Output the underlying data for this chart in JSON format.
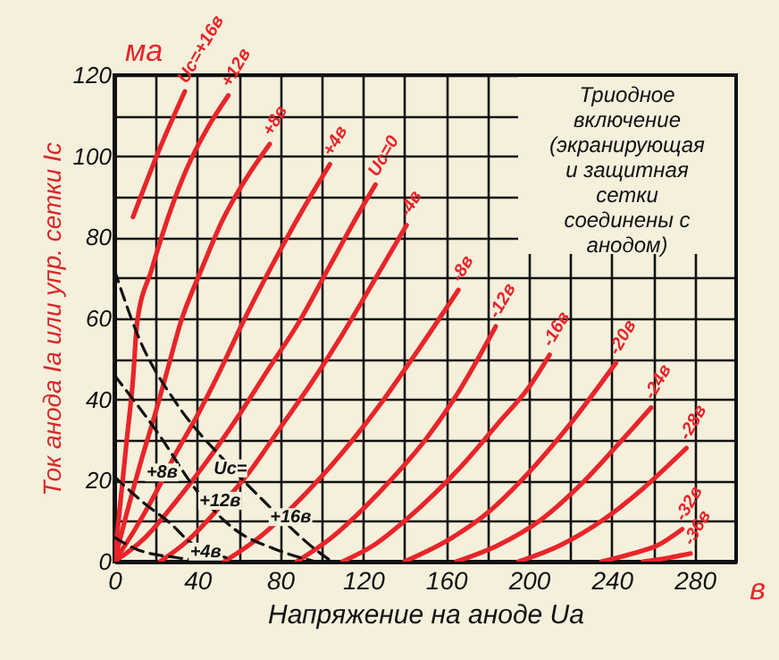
{
  "chart_data": {
    "type": "line",
    "xlabel": "Напряжение на аноде Uа",
    "ylabel": "Ток анода Iа или упр. сетки Iс",
    "xlim": [
      0,
      300
    ],
    "ylim": [
      0,
      120
    ],
    "xticks": [
      0,
      {
        "value": 20,
        "label": null
      },
      40,
      {
        "value": 60,
        "label": null
      },
      80,
      {
        "value": 100,
        "label": null
      },
      120,
      {
        "value": 140,
        "label": null
      },
      160,
      {
        "value": 180,
        "label": null
      },
      200,
      {
        "value": 220,
        "label": null
      },
      240,
      {
        "value": 260,
        "label": null
      },
      280
    ],
    "yticks": [
      0,
      {
        "value": 10,
        "label": null
      },
      20,
      {
        "value": 30,
        "label": null
      },
      40,
      {
        "value": 50,
        "label": null
      },
      60,
      {
        "value": 70,
        "label": null
      },
      80,
      {
        "value": 90,
        "label": null
      },
      100,
      {
        "value": 110,
        "label": null
      },
      120
    ],
    "grid": true,
    "marker": "none",
    "series": [
      {
        "name": "Uc=+16в",
        "color": "#e8252a",
        "x": [
          9,
          22,
          34
        ],
        "values": [
          85,
          102,
          116
        ]
      },
      {
        "name": "+12в",
        "color": "#e8252a",
        "x": [
          0,
          3,
          6,
          9,
          11,
          18,
          26,
          35,
          45,
          55
        ],
        "values": [
          0,
          15,
          30,
          45,
          59,
          72,
          85,
          97,
          107,
          115
        ]
      },
      {
        "name": "+8в",
        "color": "#e8252a",
        "x": [
          0,
          6,
          13,
          20,
          26,
          32,
          42,
          52,
          63,
          75
        ],
        "values": [
          0,
          12,
          25,
          37,
          48,
          59,
          72,
          84,
          94,
          103
        ]
      },
      {
        "name": "+4в",
        "color": "#e8252a",
        "x": [
          0,
          10,
          20,
          30,
          40,
          50,
          62,
          75,
          90,
          104
        ],
        "values": [
          0,
          8,
          17,
          27,
          36,
          46,
          59,
          72,
          86,
          98
        ]
      },
      {
        "name": "Uc=0",
        "color": "#e8252a",
        "x": [
          0,
          15,
          30,
          45,
          60,
          75,
          89,
          104,
          118,
          126
        ],
        "values": [
          0,
          6,
          15,
          25,
          36,
          48,
          59,
          73,
          86,
          93
        ]
      },
      {
        "name": "-4в",
        "color": "#e8252a",
        "x": [
          22,
          35,
          50,
          65,
          80,
          95,
          110,
          125,
          141
        ],
        "values": [
          0,
          5,
          13,
          22,
          33,
          44,
          56,
          69,
          83
        ]
      },
      {
        "name": "-8в",
        "color": "#e8252a",
        "x": [
          53,
          70,
          85,
          100,
          115,
          130,
          145,
          166
        ],
        "values": [
          0,
          6,
          13,
          21,
          30,
          40,
          51,
          67
        ]
      },
      {
        "name": "-12в",
        "color": "#e8252a",
        "x": [
          88,
          105,
          120,
          135,
          150,
          165,
          184
        ],
        "values": [
          0,
          6,
          13,
          21,
          30,
          41,
          58
        ]
      },
      {
        "name": "-16в",
        "color": "#e8252a",
        "x": [
          110,
          125,
          140,
          155,
          170,
          185,
          200,
          210
        ],
        "values": [
          0,
          4,
          10,
          17,
          25,
          34,
          43,
          51
        ]
      },
      {
        "name": "-20в",
        "color": "#e8252a",
        "x": [
          140,
          160,
          180,
          200,
          220,
          242
        ],
        "values": [
          0,
          5,
          12,
          22,
          34,
          49
        ]
      },
      {
        "name": "-24в",
        "color": "#e8252a",
        "x": [
          165,
          185,
          205,
          225,
          245,
          259
        ],
        "values": [
          0,
          4,
          10,
          19,
          30,
          38
        ]
      },
      {
        "name": "-28в",
        "color": "#e8252a",
        "x": [
          195,
          215,
          235,
          255,
          276
        ],
        "values": [
          0,
          4,
          10,
          18,
          28
        ]
      },
      {
        "name": "-32в",
        "color": "#e8252a",
        "x": [
          235,
          250,
          262,
          274
        ],
        "values": [
          0,
          2,
          4,
          8
        ]
      },
      {
        "name": "-36в",
        "color": "#e8252a",
        "x": [
          255,
          268,
          278
        ],
        "values": [
          0,
          1,
          2
        ]
      },
      {
        "color": "#111111",
        "line_style": "dashed",
        "x": [
          0,
          12,
          30,
          53,
          72,
          97,
          105
        ],
        "values": [
          72,
          55,
          39,
          25,
          15,
          3,
          0
        ]
      },
      {
        "color": "#111111",
        "line_style": "dashed",
        "x": [
          0,
          22,
          39,
          58,
          78,
          97
        ],
        "values": [
          46,
          31,
          18,
          8,
          3,
          0
        ]
      },
      {
        "color": "#111111",
        "line_style": "dashed",
        "x": [
          0,
          13,
          28,
          36,
          54
        ],
        "values": [
          21,
          15,
          9,
          5,
          1
        ]
      },
      {
        "color": "#111111",
        "line_style": "dashed",
        "x": [
          0,
          11,
          30,
          51
        ],
        "values": [
          6,
          3,
          1,
          0
        ]
      }
    ],
    "annotations": [
      "Триодное включение (экранирующая и защитная сетки соединены с анодом)",
      "ма",
      "в",
      {
        "text": "Uc=",
        "x": 56,
        "y": 23
      },
      {
        "text": "+16в",
        "x": 85,
        "y": 11
      },
      {
        "text": "+12в",
        "x": 51,
        "y": 15
      },
      {
        "text": "+8в",
        "x": 23,
        "y": 22
      },
      {
        "text": "+4в",
        "x": 44,
        "y": 2.5
      }
    ]
  }
}
